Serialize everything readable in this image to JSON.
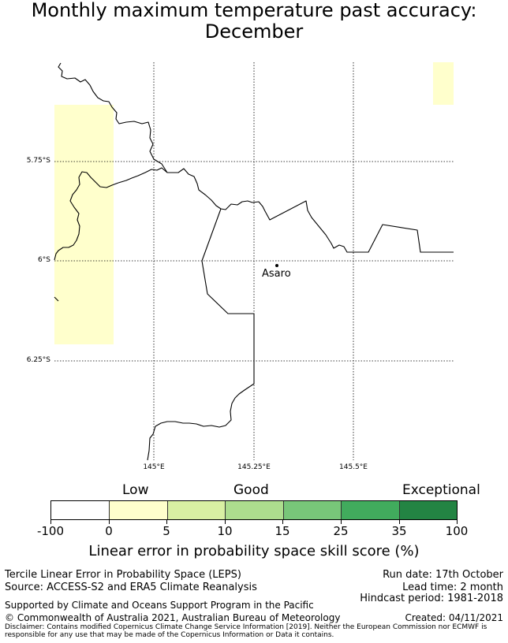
{
  "title": {
    "line1": "Monthly maximum temperature past accuracy:",
    "line2": "December"
  },
  "map": {
    "latitude_labels": [
      "5.75°S",
      "6°S",
      "6.25°S"
    ],
    "longitude_labels": [
      "145°E",
      "145.25°E",
      "145.5°E"
    ],
    "place": {
      "name": "Asaro"
    },
    "colors": {
      "border": "#000000",
      "cell_low": "#ffffcc",
      "gridline": "#000000"
    }
  },
  "colorbar": {
    "category_labels": {
      "low": "Low",
      "good": "Good",
      "exceptional": "Exceptional"
    },
    "ticks": [
      "-100",
      "0",
      "5",
      "10",
      "15",
      "25",
      "35",
      "100"
    ],
    "colors": [
      "#ffffff",
      "#ffffcc",
      "#d9f0a3",
      "#addd8e",
      "#78c679",
      "#41ab5d",
      "#238443"
    ],
    "title": "Linear error in probability space skill score (%)"
  },
  "footer": {
    "left1": "Tercile Linear Error in Probability Space (LEPS)",
    "left2": "Source: ACCESS-S2 and ERA5 Climate Reanalysis",
    "supported": "Supported by Climate and Oceans Support Program in the Pacific",
    "copyright": "© Commonwealth of Australia 2021, Australian Bureau of Meteorology",
    "run_date": "Run date: 17th October",
    "lead_time": "Lead time: 2 month",
    "hindcast": "Hindcast period: 1981-2018",
    "created": "Created: 04/11/2021",
    "disclaimer": "Disclaimer: Contains modified Copernicus Climate Change Service Information [2019]. Neither the European Commission nor ECMWF is responsible for any use that may be made of the Copernicus Information or Data it contains."
  }
}
